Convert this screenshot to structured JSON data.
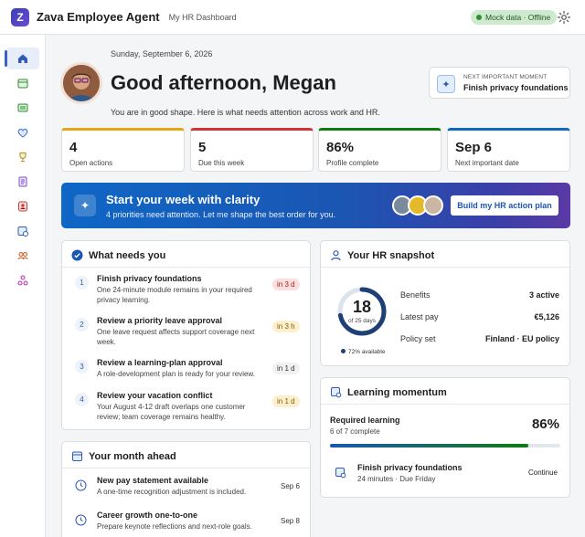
{
  "app": {
    "title": "Zava Employee Agent",
    "tab": "My HR Dashboard",
    "logo_letter": "Z",
    "status_badge": "Mock data · Offline"
  },
  "sidebar": {
    "items": [
      "home-icon",
      "calendar-icon",
      "wallet-icon",
      "heart-icon",
      "trophy-icon",
      "document-icon",
      "person-badge-icon",
      "schedule-icon",
      "team-icon",
      "org-chart-icon"
    ]
  },
  "header": {
    "date": "Sunday, September 6, 2026",
    "greeting": "Good afternoon, Megan",
    "subtitle": "You are in good shape. Here is what needs attention across work and HR.",
    "next": {
      "label": "NEXT IMPORTANT MOMENT",
      "value": "Finish privacy foundations"
    }
  },
  "stats": [
    {
      "value": "4",
      "label": "Open actions",
      "color": "#e8a317"
    },
    {
      "value": "5",
      "label": "Due this week",
      "color": "#d13438"
    },
    {
      "value": "86%",
      "label": "Profile complete",
      "color": "#107c10"
    },
    {
      "value": "Sep 6",
      "label": "Next important date",
      "color": "#0f6cbd"
    }
  ],
  "hero": {
    "title": "Start your week with clarity",
    "subtitle": "4 priorities need attention. Let me shape the best order for you.",
    "button": "Build my HR action plan"
  },
  "needs": {
    "title": "What needs you",
    "items": [
      {
        "num": "1",
        "title": "Finish privacy foundations",
        "desc": "One 24-minute module remains in your required privacy learning.",
        "due": "in 3 d",
        "tone": "red"
      },
      {
        "num": "2",
        "title": "Review a priority leave approval",
        "desc": "One leave request affects support coverage next week.",
        "due": "in 3 h",
        "tone": "yellow"
      },
      {
        "num": "3",
        "title": "Review a learning-plan approval",
        "desc": "A role-development plan is ready for your review.",
        "due": "in 1 d",
        "tone": "gray"
      },
      {
        "num": "4",
        "title": "Review your vacation conflict",
        "desc": "Your August 4-12 draft overlaps one customer review; team coverage remains healthy.",
        "due": "in 1 d",
        "tone": "yellow"
      }
    ]
  },
  "month": {
    "title": "Your month ahead",
    "items": [
      {
        "title": "New pay statement available",
        "desc": "A one-time recognition adjustment is included.",
        "date": "Sep 6"
      },
      {
        "title": "Career growth one-to-one",
        "desc": "Prepare keynote reflections and next-role goals.",
        "date": "Sep 8"
      }
    ]
  },
  "snapshot": {
    "title": "Your HR snapshot",
    "ring": {
      "value": "18",
      "caption": "of 25 days",
      "fraction": 0.72,
      "legend": "72% available"
    },
    "rows": [
      {
        "label": "Benefits",
        "value": "3 active"
      },
      {
        "label": "Latest pay",
        "value": "€5,126"
      },
      {
        "label": "Policy set",
        "value": "Finland · EU policy"
      }
    ]
  },
  "learning": {
    "title": "Learning momentum",
    "required_label": "Required learning",
    "required_sub": "6 of 7 complete",
    "percent": "86%",
    "progress": 0.86,
    "course": {
      "title": "Finish privacy foundations",
      "meta": "24 minutes · Due Friday",
      "action": "Continue"
    }
  }
}
